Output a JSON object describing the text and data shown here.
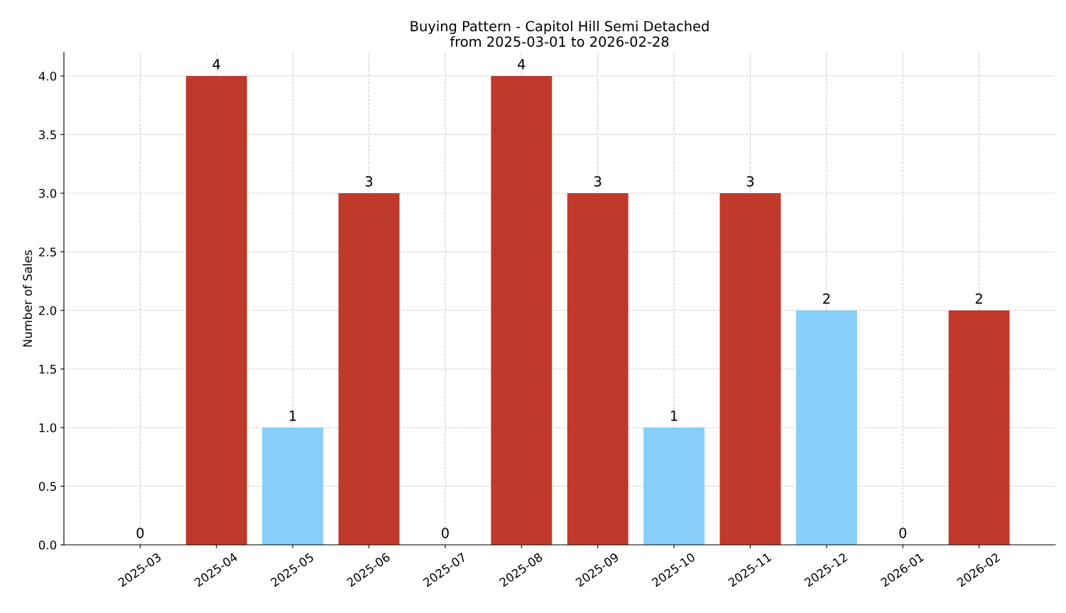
{
  "chart_data": {
    "type": "bar",
    "title": "Buying Pattern - Capitol Hill Semi Detached\nfrom 2025-03-01 to 2026-02-28",
    "ylabel": "Number of Sales",
    "categories": [
      "2025-03",
      "2025-04",
      "2025-05",
      "2025-06",
      "2025-07",
      "2025-08",
      "2025-09",
      "2025-10",
      "2025-11",
      "2025-12",
      "2026-01",
      "2026-02"
    ],
    "values": [
      0,
      4,
      1,
      3,
      0,
      4,
      3,
      1,
      3,
      2,
      0,
      2
    ],
    "colors": [
      "#c0392b",
      "#c0392b",
      "#87cefa",
      "#c0392b",
      "#c0392b",
      "#c0392b",
      "#c0392b",
      "#87cefa",
      "#c0392b",
      "#87cefa",
      "#c0392b",
      "#c0392b"
    ],
    "ylim": [
      0,
      4.2
    ],
    "yticks": [
      {
        "value": 0,
        "label": "0.0"
      },
      {
        "value": 0.5,
        "label": "0.5"
      },
      {
        "value": 1,
        "label": "1.0"
      },
      {
        "value": 1.5,
        "label": "1.5"
      },
      {
        "value": 2,
        "label": "2.0"
      },
      {
        "value": 2.5,
        "label": "2.5"
      },
      {
        "value": 3,
        "label": "3.0"
      },
      {
        "value": 3.5,
        "label": "3.5"
      },
      {
        "value": 4,
        "label": "4.0"
      }
    ],
    "grid": true,
    "data_labels": true
  }
}
